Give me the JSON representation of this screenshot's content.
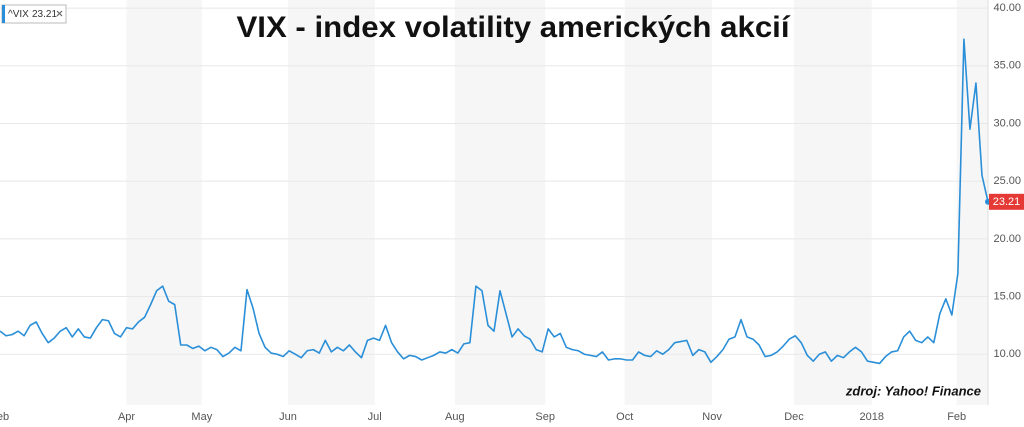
{
  "chart_data": {
    "type": "line",
    "title": "VIX - index volatility amerických akcií",
    "annotation": "zdroj: Yahoo! Finance",
    "xlim": [
      0,
      164
    ],
    "xticks": [
      {
        "value": 0.5,
        "label": "eb"
      },
      {
        "value": 21,
        "label": "Apr"
      },
      {
        "value": 33.5,
        "label": "May"
      },
      {
        "value": 47.8,
        "label": "Jun"
      },
      {
        "value": 62.2,
        "label": "Jul"
      },
      {
        "value": 75.5,
        "label": "Aug"
      },
      {
        "value": 90.5,
        "label": "Sep"
      },
      {
        "value": 103.7,
        "label": "Oct"
      },
      {
        "value": 118.2,
        "label": "Nov"
      },
      {
        "value": 131.8,
        "label": "Dec"
      },
      {
        "value": 144.7,
        "label": "2018"
      },
      {
        "value": 158.8,
        "label": "Feb"
      }
    ],
    "ylim": [
      5.6,
      40.7
    ],
    "yticks": [
      {
        "value": 10,
        "label": "10.00"
      },
      {
        "value": 15,
        "label": "15.00"
      },
      {
        "value": 20,
        "label": "20.00"
      },
      {
        "value": 25,
        "label": "25.00"
      },
      {
        "value": 30,
        "label": "30.00"
      },
      {
        "value": 35,
        "label": "35.00"
      },
      {
        "value": 40,
        "label": "40.00"
      }
    ],
    "grid": true,
    "series": [
      {
        "name": "^VIX",
        "color": "#2a8fd8",
        "values": [
          12.0,
          11.6,
          11.7,
          12.0,
          11.6,
          12.5,
          12.8,
          11.8,
          11.0,
          11.4,
          12.0,
          12.3,
          11.5,
          12.2,
          11.5,
          11.4,
          12.3,
          13.0,
          12.9,
          11.8,
          11.5,
          12.3,
          12.2,
          12.8,
          13.2,
          14.3,
          15.5,
          15.9,
          14.6,
          14.3,
          10.8,
          10.8,
          10.5,
          10.7,
          10.3,
          10.6,
          10.4,
          9.8,
          10.1,
          10.6,
          10.3,
          15.6,
          14.0,
          11.8,
          10.6,
          10.1,
          10.0,
          9.8,
          10.3,
          10.0,
          9.7,
          10.3,
          10.4,
          10.1,
          11.2,
          10.2,
          10.6,
          10.3,
          10.8,
          10.2,
          9.7,
          11.2,
          11.4,
          11.2,
          12.5,
          11.0,
          10.2,
          9.6,
          9.9,
          9.8,
          9.5,
          9.7,
          9.9,
          10.2,
          10.1,
          10.4,
          10.1,
          10.9,
          11.0,
          15.9,
          15.5,
          12.5,
          12.0,
          15.5,
          13.5,
          11.5,
          12.2,
          11.6,
          11.3,
          10.4,
          10.2,
          12.2,
          11.5,
          11.8,
          10.6,
          10.4,
          10.3,
          10.0,
          9.9,
          9.8,
          10.2,
          9.5,
          9.6,
          9.6,
          9.5,
          9.5,
          10.2,
          9.9,
          9.8,
          10.3,
          10.0,
          10.4,
          11.0,
          11.1,
          11.2,
          9.9,
          10.4,
          10.2,
          9.3,
          9.8,
          10.4,
          11.3,
          11.5,
          13.0,
          11.5,
          11.3,
          10.8,
          9.8,
          9.9,
          10.2,
          10.7,
          11.3,
          11.6,
          11.0,
          9.9,
          9.4,
          10.0,
          10.2,
          9.4,
          9.9,
          9.7,
          10.2,
          10.6,
          10.2,
          9.4,
          9.3,
          9.2,
          9.8,
          10.2,
          10.3,
          11.5,
          12.0,
          11.2,
          11.0,
          11.5,
          11.0,
          13.5,
          14.8,
          13.4,
          17.0,
          37.3,
          29.5,
          33.5,
          25.5,
          23.21
        ]
      }
    ]
  }
}
